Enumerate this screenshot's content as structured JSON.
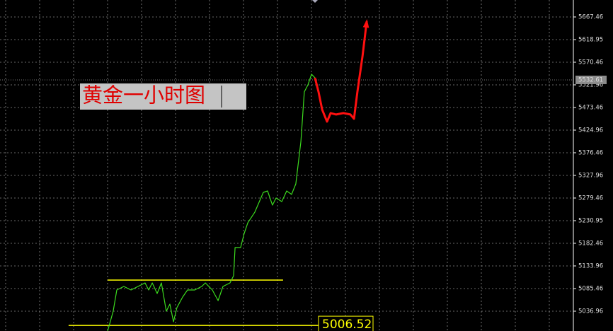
{
  "chart_data": {
    "type": "line",
    "annotation": "黄金一小时图",
    "ylim": [
      4994.5,
      5703.8
    ],
    "xlim": [
      0,
      270
    ],
    "yticks": [
      5036.96,
      5085.46,
      5133.96,
      5182.46,
      5230.95,
      5279.46,
      5327.96,
      5376.46,
      5424.96,
      5473.46,
      5521.96,
      5570.46,
      5618.95,
      5667.46
    ],
    "grid": true,
    "current_price": 5532.61,
    "series": [
      {
        "color": "#3cdc1e",
        "x": [
          50.7,
          53.3,
          55,
          58.3,
          61.7,
          65,
          68.3,
          70,
          71.7,
          74,
          76,
          78.3,
          80,
          81.7,
          83.3,
          86,
          88.3,
          91.7,
          95,
          96.7,
          100,
          102.7,
          105,
          108.3,
          110,
          110.7,
          113.3,
          115,
          116.7,
          120,
          124,
          126,
          128.3,
          130,
          132.7,
          135,
          137.3,
          139.3,
          141.7,
          143.3,
          145,
          146.7,
          148.3
        ],
        "values": [
          4994.5,
          5036.96,
          5082.4,
          5090.0,
          5082.4,
          5090.0,
          5097.6,
          5082.4,
          5097.6,
          5074.8,
          5097.6,
          5036.96,
          5052.1,
          5014.2,
          5044.5,
          5067.3,
          5082.4,
          5082.4,
          5090.0,
          5097.6,
          5082.4,
          5059.7,
          5090.0,
          5097.6,
          5112.8,
          5173.4,
          5173.4,
          5203.7,
          5226.5,
          5249.2,
          5291.6,
          5294.6,
          5264.3,
          5279.5,
          5271.9,
          5294.6,
          5287.1,
          5309.8,
          5400.8,
          5506.9,
          5522.0,
          5544.8,
          5537.2
        ]
      },
      {
        "color": "#ff1010",
        "x": [
          148.3,
          150,
          151.7,
          154,
          155.7,
          158.3,
          161.7,
          165,
          166.7,
          168.3,
          170.7,
          172.7
        ],
        "values": [
          5537.2,
          5506.9,
          5469.0,
          5443.2,
          5461.4,
          5458.4,
          5461.4,
          5458.4,
          5449.3,
          5506.9,
          5583.2,
          5658.4
        ]
      }
    ],
    "levels": [
      {
        "value": 5103.7,
        "x": [
          50.7,
          133.3
        ],
        "color": "#ffff00"
      },
      {
        "value": 5006.52,
        "x": [
          32.3,
          150
        ],
        "color": "#ffff00"
      }
    ]
  }
}
